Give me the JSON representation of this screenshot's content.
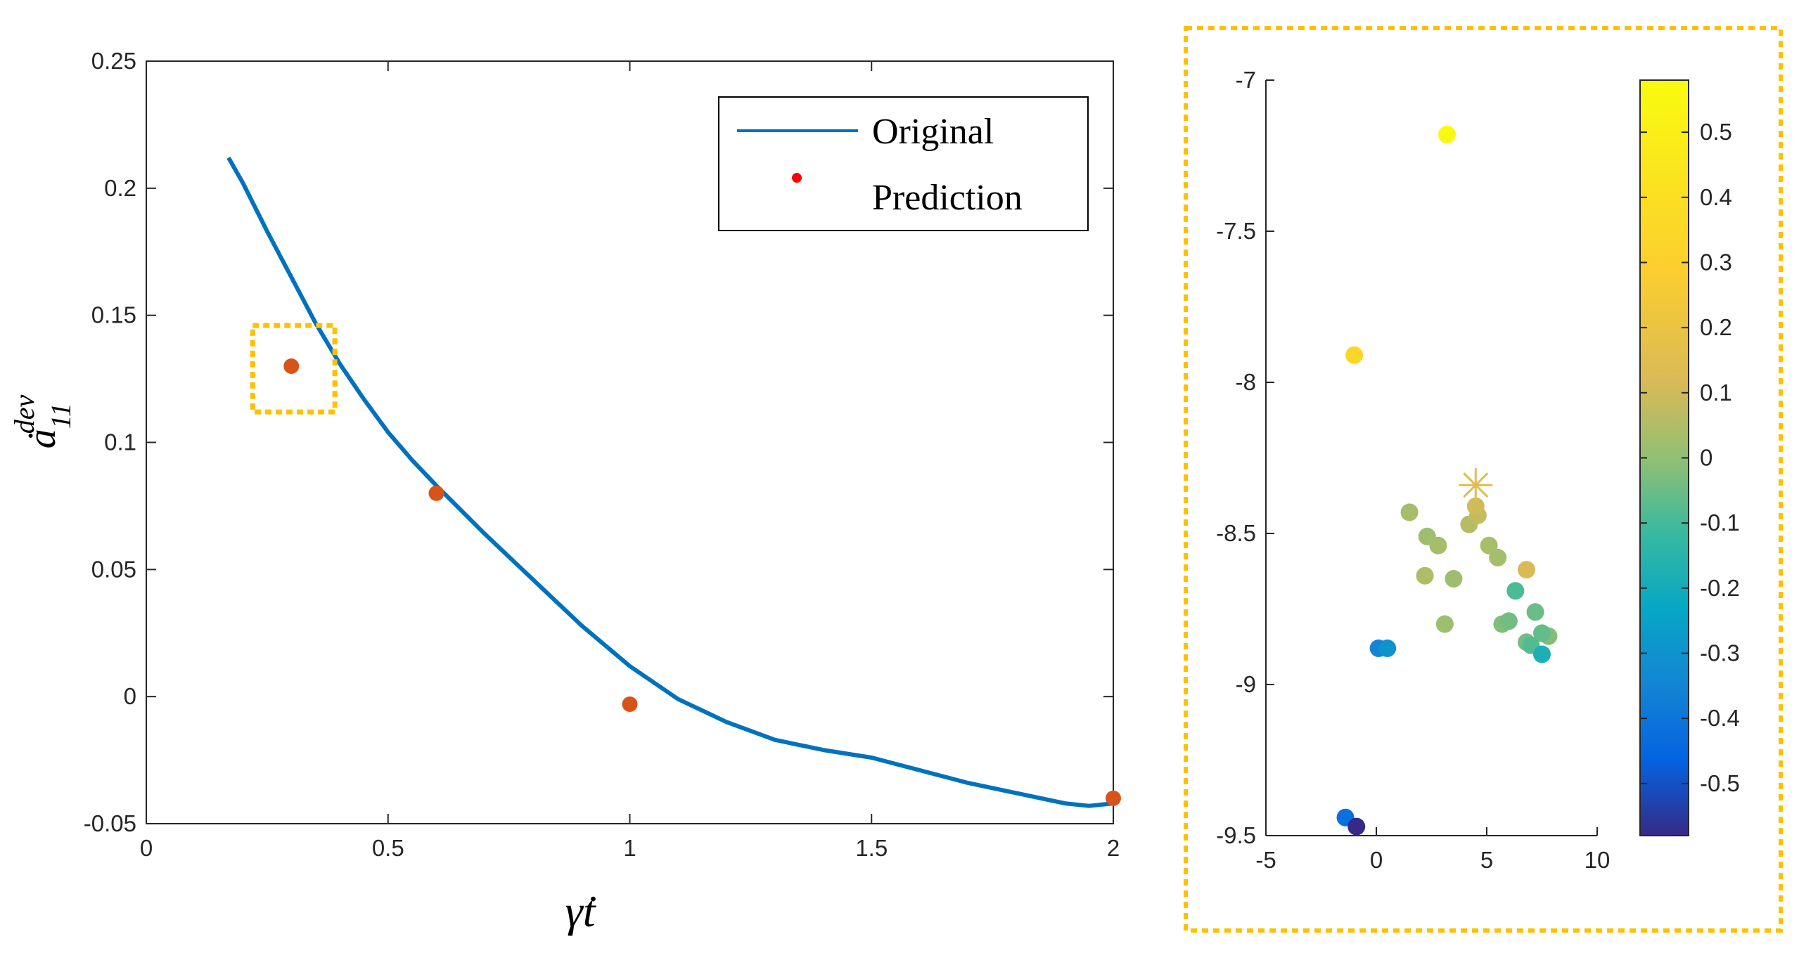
{
  "chart_data": [
    {
      "type": "line",
      "xlabel": "γ̇t",
      "ylabel": "ȧ",
      "ylabel_subscript": "11",
      "ylabel_superscript": "dev",
      "xlim": [
        0,
        2
      ],
      "ylim": [
        -0.05,
        0.25
      ],
      "xticks": [
        "0",
        "0.5",
        "1",
        "1.5",
        "2"
      ],
      "yticks": [
        "-0.05",
        "0",
        "0.05",
        "0.1",
        "0.15",
        "0.2",
        "0.25"
      ],
      "legend": {
        "position": "top-right",
        "entries": [
          "Original",
          "Prediction"
        ]
      },
      "series": [
        {
          "name": "Original",
          "color": "#0072BD",
          "x": [
            0.17,
            0.2,
            0.25,
            0.3,
            0.35,
            0.4,
            0.45,
            0.5,
            0.55,
            0.6,
            0.7,
            0.8,
            0.9,
            1.0,
            1.1,
            1.2,
            1.3,
            1.35,
            1.4,
            1.5,
            1.6,
            1.7,
            1.8,
            1.9,
            1.95,
            2.0
          ],
          "y": [
            0.212,
            0.202,
            0.183,
            0.165,
            0.147,
            0.131,
            0.117,
            0.104,
            0.093,
            0.083,
            0.064,
            0.046,
            0.028,
            0.012,
            -0.001,
            -0.01,
            -0.017,
            -0.019,
            -0.021,
            -0.024,
            -0.029,
            -0.034,
            -0.038,
            -0.042,
            -0.043,
            -0.042
          ]
        },
        {
          "name": "Prediction",
          "color": "#D95319",
          "x": [
            0.3,
            0.6,
            1.0,
            2.0
          ],
          "y": [
            0.13,
            0.08,
            -0.003,
            -0.04
          ]
        }
      ],
      "highlight": {
        "x": [
          0.22,
          0.39
        ],
        "y": [
          0.112,
          0.146
        ],
        "color": "#FFC000"
      }
    },
    {
      "type": "scatter",
      "xlim": [
        -5,
        10
      ],
      "ylim": [
        -9.5,
        -7
      ],
      "xticks": [
        "-5",
        "0",
        "5",
        "10"
      ],
      "yticks": [
        "-7",
        "-7.5",
        "-8",
        "-8.5",
        "-9",
        "-9.5"
      ],
      "colorbar": {
        "range": [
          -0.58,
          0.58
        ],
        "ticks": [
          "0.5",
          "0.4",
          "0.3",
          "0.2",
          "0.1",
          "0",
          "-0.1",
          "-0.2",
          "-0.3",
          "-0.4",
          "-0.5"
        ],
        "colormap": "parula"
      },
      "points": [
        {
          "x": 3.2,
          "y": -7.18,
          "c": 0.56
        },
        {
          "x": -1.0,
          "y": -7.91,
          "c": 0.34
        },
        {
          "x": 1.5,
          "y": -8.43,
          "c": 0.03
        },
        {
          "x": 2.3,
          "y": -8.51,
          "c": 0.02
        },
        {
          "x": 2.8,
          "y": -8.54,
          "c": 0.03
        },
        {
          "x": 4.2,
          "y": -8.47,
          "c": 0.06
        },
        {
          "x": 4.6,
          "y": -8.44,
          "c": 0.08
        },
        {
          "x": 4.5,
          "y": -8.41,
          "c": 0.1
        },
        {
          "x": 5.1,
          "y": -8.54,
          "c": 0.04
        },
        {
          "x": 5.5,
          "y": -8.58,
          "c": 0.03
        },
        {
          "x": 6.8,
          "y": -8.62,
          "c": 0.12
        },
        {
          "x": 2.2,
          "y": -8.64,
          "c": 0.05
        },
        {
          "x": 3.5,
          "y": -8.65,
          "c": 0.02
        },
        {
          "x": 6.3,
          "y": -8.69,
          "c": -0.09
        },
        {
          "x": 7.2,
          "y": -8.76,
          "c": -0.05
        },
        {
          "x": 3.1,
          "y": -8.8,
          "c": 0.02
        },
        {
          "x": 5.7,
          "y": -8.8,
          "c": -0.02
        },
        {
          "x": 6.0,
          "y": -8.79,
          "c": -0.04
        },
        {
          "x": 7.8,
          "y": -8.84,
          "c": -0.02
        },
        {
          "x": 7.5,
          "y": -8.83,
          "c": -0.06
        },
        {
          "x": 6.8,
          "y": -8.86,
          "c": -0.04
        },
        {
          "x": 7.0,
          "y": -8.87,
          "c": -0.08
        },
        {
          "x": 7.5,
          "y": -8.9,
          "c": -0.18
        },
        {
          "x": 0.1,
          "y": -8.88,
          "c": -0.35
        },
        {
          "x": 0.5,
          "y": -8.88,
          "c": -0.3
        },
        {
          "x": -1.4,
          "y": -9.44,
          "c": -0.42
        },
        {
          "x": -0.9,
          "y": -9.47,
          "c": -0.58
        }
      ],
      "marker_star": {
        "x": 4.5,
        "y": -8.34,
        "c": 0.14
      },
      "frame_color": "#FFC000"
    }
  ]
}
